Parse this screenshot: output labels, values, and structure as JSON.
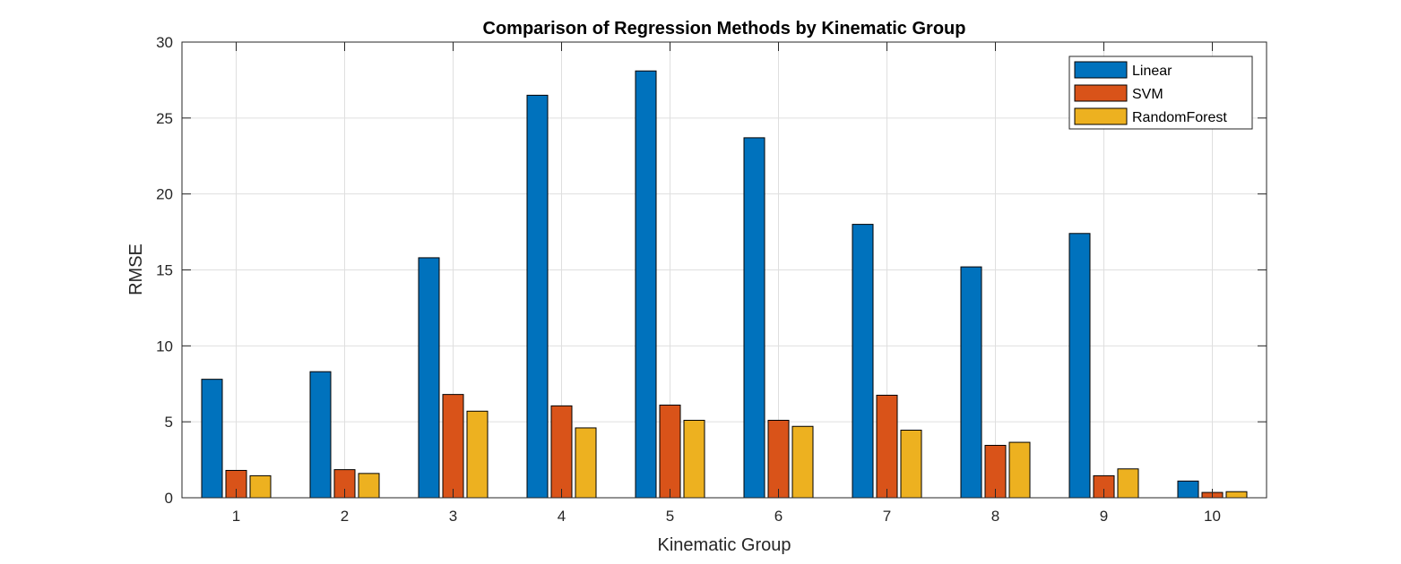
{
  "chart_data": {
    "type": "bar",
    "title": "Comparison of Regression Methods by Kinematic Group",
    "xlabel": "Kinematic Group",
    "ylabel": "RMSE",
    "categories": [
      "1",
      "2",
      "3",
      "4",
      "5",
      "6",
      "7",
      "8",
      "9",
      "10"
    ],
    "ylim": [
      0,
      30
    ],
    "yticks": [
      "0",
      "5",
      "10",
      "15",
      "20",
      "25",
      "30"
    ],
    "grid": true,
    "legend_position": "top-right",
    "series": [
      {
        "name": "Linear",
        "color": "#0072BD",
        "values": [
          7.8,
          8.3,
          15.8,
          26.5,
          28.1,
          23.7,
          18.0,
          15.2,
          17.4,
          1.1
        ]
      },
      {
        "name": "SVM",
        "color": "#D95319",
        "values": [
          1.8,
          1.85,
          6.8,
          6.05,
          6.1,
          5.1,
          6.75,
          3.45,
          1.45,
          0.35
        ]
      },
      {
        "name": "RandomForest",
        "color": "#EDB120",
        "values": [
          1.45,
          1.6,
          5.7,
          4.6,
          5.1,
          4.7,
          4.45,
          3.65,
          1.9,
          0.4
        ]
      }
    ]
  }
}
